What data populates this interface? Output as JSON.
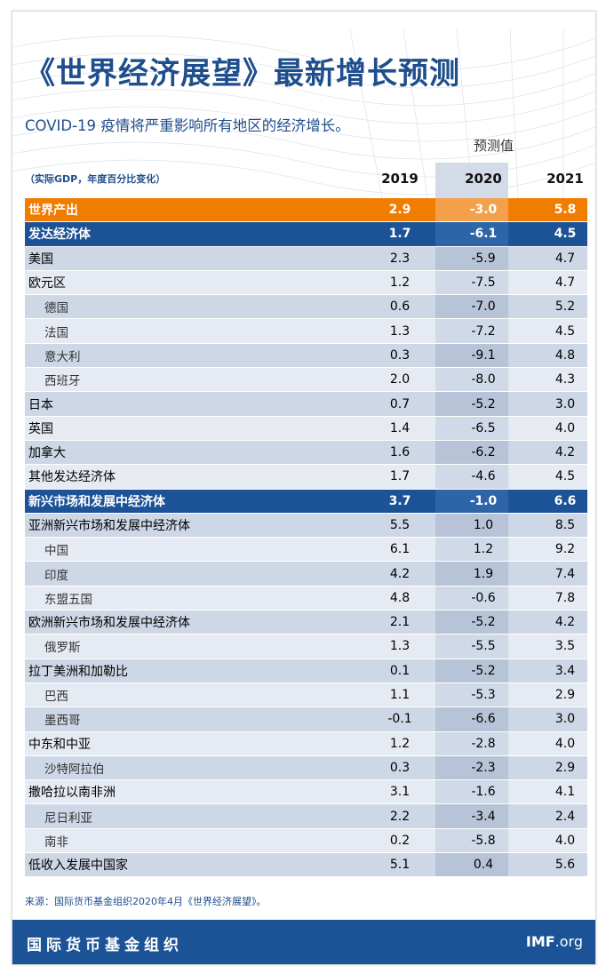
{
  "title": "《世界经济展望》最新增长预测",
  "subtitle": "COVID-19 疫情将严重影响所有地区的经济增长。",
  "forecast_label": "预测值",
  "unit_label": "（实际GDP，年度百分比变化）",
  "years": [
    "2019",
    "2020",
    "2021"
  ],
  "rows": [
    {
      "name": "世界产出",
      "type": "total",
      "v": [
        "2.9",
        "-3.0",
        "5.8"
      ]
    },
    {
      "name": "发达经济体",
      "type": "group",
      "v": [
        "1.7",
        "-6.1",
        "4.5"
      ]
    },
    {
      "name": "美国",
      "type": "main",
      "v": [
        "2.3",
        "-5.9",
        "4.7"
      ]
    },
    {
      "name": "欧元区",
      "type": "main",
      "v": [
        "1.2",
        "-7.5",
        "4.7"
      ]
    },
    {
      "name": "德国",
      "type": "sub",
      "v": [
        "0.6",
        "-7.0",
        "5.2"
      ]
    },
    {
      "name": "法国",
      "type": "sub",
      "v": [
        "1.3",
        "-7.2",
        "4.5"
      ]
    },
    {
      "name": "意大利",
      "type": "sub",
      "v": [
        "0.3",
        "-9.1",
        "4.8"
      ]
    },
    {
      "name": "西班牙",
      "type": "sub",
      "v": [
        "2.0",
        "-8.0",
        "4.3"
      ]
    },
    {
      "name": "日本",
      "type": "main",
      "v": [
        "0.7",
        "-5.2",
        "3.0"
      ]
    },
    {
      "name": "英国",
      "type": "main",
      "v": [
        "1.4",
        "-6.5",
        "4.0"
      ]
    },
    {
      "name": "加拿大",
      "type": "main",
      "v": [
        "1.6",
        "-6.2",
        "4.2"
      ]
    },
    {
      "name": "其他发达经济体",
      "type": "main",
      "v": [
        "1.7",
        "-4.6",
        "4.5"
      ]
    },
    {
      "name": "新兴市场和发展中经济体",
      "type": "group",
      "v": [
        "3.7",
        "-1.0",
        "6.6"
      ]
    },
    {
      "name": "亚洲新兴市场和发展中经济体",
      "type": "main",
      "v": [
        "5.5",
        "1.0",
        "8.5"
      ]
    },
    {
      "name": "中国",
      "type": "sub",
      "v": [
        "6.1",
        "1.2",
        "9.2"
      ]
    },
    {
      "name": "印度",
      "type": "sub",
      "v": [
        "4.2",
        "1.9",
        "7.4"
      ]
    },
    {
      "name": "东盟五国",
      "type": "sub",
      "v": [
        "4.8",
        "-0.6",
        "7.8"
      ]
    },
    {
      "name": "欧洲新兴市场和发展中经济体",
      "type": "main",
      "v": [
        "2.1",
        "-5.2",
        "4.2"
      ]
    },
    {
      "name": "俄罗斯",
      "type": "sub",
      "v": [
        "1.3",
        "-5.5",
        "3.5"
      ]
    },
    {
      "name": "拉丁美洲和加勒比",
      "type": "main",
      "v": [
        "0.1",
        "-5.2",
        "3.4"
      ]
    },
    {
      "name": "巴西",
      "type": "sub",
      "v": [
        "1.1",
        "-5.3",
        "2.9"
      ]
    },
    {
      "name": "墨西哥",
      "type": "sub",
      "v": [
        "-0.1",
        "-6.6",
        "3.0"
      ]
    },
    {
      "name": "中东和中亚",
      "type": "main",
      "v": [
        "1.2",
        "-2.8",
        "4.0"
      ]
    },
    {
      "name": "沙特阿拉伯",
      "type": "sub",
      "v": [
        "0.3",
        "-2.3",
        "2.9"
      ]
    },
    {
      "name": "撒哈拉以南非洲",
      "type": "main",
      "v": [
        "3.1",
        "-1.6",
        "4.1"
      ]
    },
    {
      "name": "尼日利亚",
      "type": "sub",
      "v": [
        "2.2",
        "-3.4",
        "2.4"
      ]
    },
    {
      "name": "南非",
      "type": "sub",
      "v": [
        "0.2",
        "-5.8",
        "4.0"
      ]
    },
    {
      "name": "低收入发展中国家",
      "type": "main",
      "v": [
        "5.1",
        "0.4",
        "5.6"
      ]
    }
  ],
  "source": "来源：国际货币基金组织2020年4月《世界经济展望》。",
  "footer": {
    "org": "国际货币基金组织",
    "site_bold": "IMF",
    "site_rest": ".org"
  },
  "colors": {
    "brand_blue": "#1c5397",
    "title_blue": "#1f4e8c",
    "orange": "#f07d00"
  }
}
